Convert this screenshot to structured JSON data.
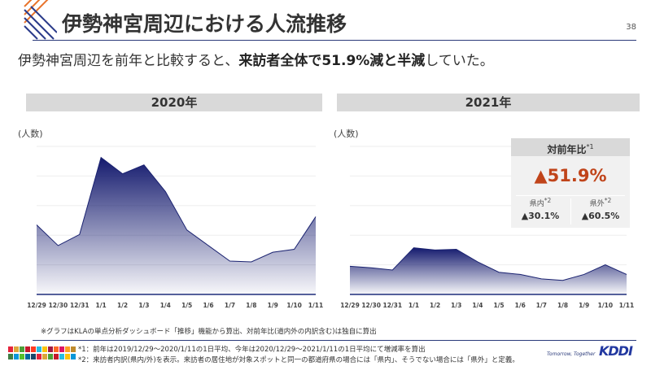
{
  "header": {
    "title": "伊勢神宮周辺における人流推移",
    "page_number": "38"
  },
  "summary": {
    "pre": "伊勢神宮周辺を前年と比較すると、",
    "bold1": "来訪者全体で51.9%減と半減",
    "post": "していた。"
  },
  "colors": {
    "accent": "#1f2d7a",
    "orange": "#c0441a"
  },
  "chart_data": [
    {
      "type": "area",
      "title": "2020年",
      "ylabel": "(人数)",
      "categories": [
        "12/29",
        "12/30",
        "12/31",
        "1/1",
        "1/2",
        "1/3",
        "1/4",
        "1/5",
        "1/6",
        "1/7",
        "1/8",
        "1/9",
        "1/10",
        "1/11"
      ],
      "values": [
        94,
        66,
        81,
        185,
        163,
        175,
        139,
        87,
        66,
        45,
        44,
        57,
        61,
        105
      ],
      "ylim": [
        0,
        200
      ],
      "grid": true
    },
    {
      "type": "area",
      "title": "2021年",
      "ylabel": "(人数)",
      "categories": [
        "12/29",
        "12/30",
        "12/31",
        "1/1",
        "1/2",
        "1/3",
        "1/4",
        "1/5",
        "1/6",
        "1/7",
        "1/8",
        "1/9",
        "1/10",
        "1/11"
      ],
      "values": [
        38,
        36,
        33,
        63,
        60,
        61,
        44,
        30,
        27,
        21,
        19,
        27,
        40,
        27
      ],
      "ylim": [
        0,
        200
      ],
      "grid": true
    }
  ],
  "yoy": {
    "title": "対前年比",
    "title_note": "*1",
    "total": "▲51.9%",
    "inside_label": "県内",
    "inside_note": "*2",
    "inside_value": "▲30.1%",
    "outside_label": "県外",
    "outside_note": "*2",
    "outside_value": "▲60.5%"
  },
  "footer": {
    "note": "※グラフはKLAの単点分析ダッシュボード「推移」機能から算出、対前年比(道内外の内訳含む)は独自に算出",
    "fn1": "*1：前年は2019/12/29～2020/1/11の1日平均、今年は2020/12/29～2021/1/11の1日平均にて増減率を算出",
    "fn2": "*2：来訪者内訳(県内/外)を表示。来訪者の居住地が対象スポットと同一の都道府県の場合には「県内」、そうでない場合には「県外」と定義。",
    "tagline": "Tomorrow, Together",
    "logo": "KDDI"
  }
}
